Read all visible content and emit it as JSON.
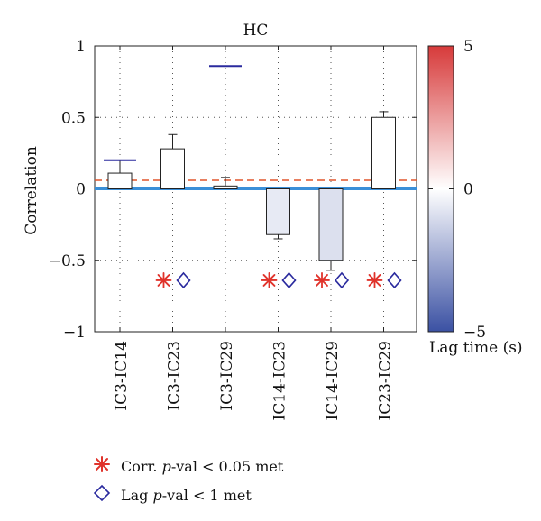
{
  "chart_data": {
    "type": "bar",
    "title": "HC",
    "ylabel": "Correlation",
    "ylim": [
      -1,
      1
    ],
    "yticks": [
      {
        "v": 1,
        "label": "1"
      },
      {
        "v": 0.5,
        "label": "0.5"
      },
      {
        "v": 0,
        "label": "0"
      },
      {
        "v": -0.5,
        "label": "−0.5"
      },
      {
        "v": -1,
        "label": "−1"
      }
    ],
    "grid": true,
    "categories": [
      "IC3-IC14",
      "IC3-IC23",
      "IC3-IC29",
      "IC14-IC23",
      "IC14-IC29",
      "IC23-IC29"
    ],
    "values": [
      0.11,
      0.28,
      0.02,
      -0.32,
      -0.5,
      0.5
    ],
    "error_tips": [
      0.2,
      0.38,
      0.08,
      -0.35,
      -0.57,
      0.54
    ],
    "lag_times": [
      0,
      0,
      0,
      -0.6,
      -0.9,
      0
    ],
    "lag_marker_y": [
      0.2,
      null,
      0.86,
      null,
      null,
      null
    ],
    "significance_y": -0.64,
    "corr_significant": [
      false,
      true,
      false,
      true,
      true,
      true
    ],
    "lag_significant": [
      false,
      true,
      false,
      true,
      true,
      true
    ],
    "threshold_line": 0.06,
    "colorbar": {
      "label": "Lag time (s)",
      "range": [
        -5,
        5
      ],
      "ticks": [
        "5",
        "0",
        "−5"
      ],
      "colors": {
        "top": "#d73a3a",
        "mid": "#ffffff",
        "bottom": "#3b51a3"
      }
    },
    "colors": {
      "star": "#e0332b",
      "diamond": "#2a2a9e",
      "zero_line": "#3a8fd8",
      "threshold": "#e0552b",
      "lag_marker": "#2a2a9e"
    }
  },
  "legend": {
    "corr_prefix": "Corr. ",
    "corr_italic": "p",
    "corr_suffix": "-val < 0.05 met",
    "lag_prefix": "Lag ",
    "lag_italic": "p",
    "lag_suffix": "-val < 1 met"
  }
}
